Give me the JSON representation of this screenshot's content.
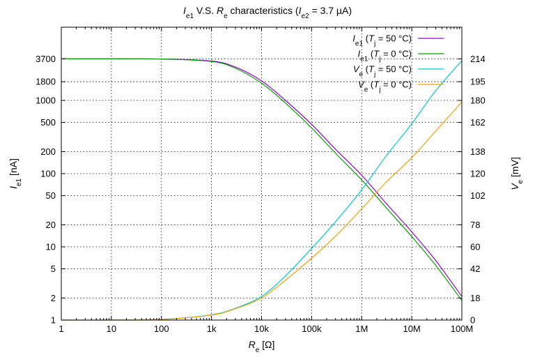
{
  "chart_data": {
    "type": "line",
    "title_parts": [
      "I",
      "e1",
      " V.S. ",
      "R",
      "e",
      " characteristics (",
      "I",
      "e2",
      " = 3.7 µA)"
    ],
    "xlabel": {
      "sym": "R",
      "sub": "e",
      "unit": "  [Ω]"
    },
    "ylabel_left": {
      "sym": "I",
      "sub": "e1",
      "unit": "  [nA]"
    },
    "ylabel_right": {
      "sym": "V",
      "sub": "e",
      "unit": "  [mV]"
    },
    "x_scale": "log",
    "xlim": [
      1,
      100000000
    ],
    "x_ticks": [
      {
        "value": 1,
        "label": "1"
      },
      {
        "value": 10,
        "label": "10"
      },
      {
        "value": 100,
        "label": "100"
      },
      {
        "value": 1000,
        "label": "1k"
      },
      {
        "value": 10000,
        "label": "10k"
      },
      {
        "value": 100000,
        "label": "100k"
      },
      {
        "value": 1000000,
        "label": "1M"
      },
      {
        "value": 10000000,
        "label": "10M"
      },
      {
        "value": 100000000,
        "label": "100M"
      }
    ],
    "y_left_scale": "log",
    "y_left_lim": [
      1,
      10000
    ],
    "y_left_ticks": [
      {
        "value": 1,
        "label": "1"
      },
      {
        "value": 2,
        "label": "2"
      },
      {
        "value": 5,
        "label": "5"
      },
      {
        "value": 10,
        "label": "10"
      },
      {
        "value": 20,
        "label": "20"
      },
      {
        "value": 50,
        "label": "50"
      },
      {
        "value": 100,
        "label": "100"
      },
      {
        "value": 200,
        "label": "200"
      },
      {
        "value": 500,
        "label": "500"
      },
      {
        "value": 1000,
        "label": "1000"
      },
      {
        "value": 1800,
        "label": "1800"
      },
      {
        "value": 3700,
        "label": "3700"
      }
    ],
    "y_right_ticks": [
      {
        "label": "0",
        "at_left_value": 1
      },
      {
        "label": "18",
        "at_left_value": 2
      },
      {
        "label": "42",
        "at_left_value": 5
      },
      {
        "label": "60",
        "at_left_value": 10
      },
      {
        "label": "78",
        "at_left_value": 20
      },
      {
        "label": "102",
        "at_left_value": 50
      },
      {
        "label": "120",
        "at_left_value": 100
      },
      {
        "label": "138",
        "at_left_value": 200
      },
      {
        "label": "162",
        "at_left_value": 500
      },
      {
        "label": "180",
        "at_left_value": 1000
      },
      {
        "label": "195",
        "at_left_value": 1800
      },
      {
        "label": "214",
        "at_left_value": 3700
      }
    ],
    "grid": true,
    "legend_position": "top-right",
    "series": [
      {
        "name_parts": {
          "sym": "I",
          "sub": "e1",
          "pre": " (",
          "tsym": "T",
          "tsub": "j",
          "post": " = 50 °C)"
        },
        "color": "#9400d3",
        "axis": "left",
        "x": [
          1,
          10,
          100,
          1000,
          3000,
          10000,
          30000,
          100000,
          300000,
          1000000,
          3000000,
          10000000,
          30000000,
          100000000
        ],
        "y": [
          3700,
          3698,
          3680,
          3450,
          2850,
          1850,
          1000,
          470,
          215,
          95,
          40,
          16,
          6.5,
          2.1
        ]
      },
      {
        "name_parts": {
          "sym": "I",
          "sub": "e1",
          "pre": " (",
          "tsym": "T",
          "tsub": "j",
          "post": " =   0 °C)"
        },
        "color": "#009e00",
        "axis": "left",
        "x": [
          1,
          10,
          100,
          1000,
          3000,
          10000,
          30000,
          100000,
          300000,
          1000000,
          3000000,
          10000000,
          30000000,
          100000000
        ],
        "y": [
          3700,
          3697,
          3675,
          3400,
          2750,
          1720,
          920,
          420,
          190,
          82,
          35,
          13.8,
          5.6,
          1.85
        ]
      },
      {
        "name_parts": {
          "sym": "V",
          "sub": "e",
          "pre": " (",
          "tsym": "T",
          "tsub": "j",
          "post": " = 50 °C)"
        },
        "color": "#00c8d0",
        "axis": "left",
        "x": [
          1,
          10,
          100,
          1000,
          3000,
          10000,
          30000,
          100000,
          300000,
          1000000,
          3000000,
          10000000,
          30000000,
          100000000
        ],
        "y": [
          1,
          1.0,
          1.02,
          1.18,
          1.45,
          2.1,
          4.0,
          9.5,
          22,
          60,
          170,
          480,
          1350,
          3500
        ]
      },
      {
        "name_parts": {
          "sym": "V",
          "sub": "e",
          "pre": " (",
          "tsym": "T",
          "tsub": "j",
          "post": " =   0 °C)"
        },
        "color": "#f0a000",
        "axis": "left",
        "x": [
          1,
          10,
          100,
          1000,
          3000,
          10000,
          30000,
          100000,
          300000,
          1000000,
          3000000,
          10000000,
          30000000,
          100000000
        ],
        "y": [
          1,
          1.0,
          1.02,
          1.17,
          1.43,
          2.0,
          3.5,
          7.0,
          14,
          33,
          75,
          165,
          380,
          950
        ]
      }
    ]
  }
}
